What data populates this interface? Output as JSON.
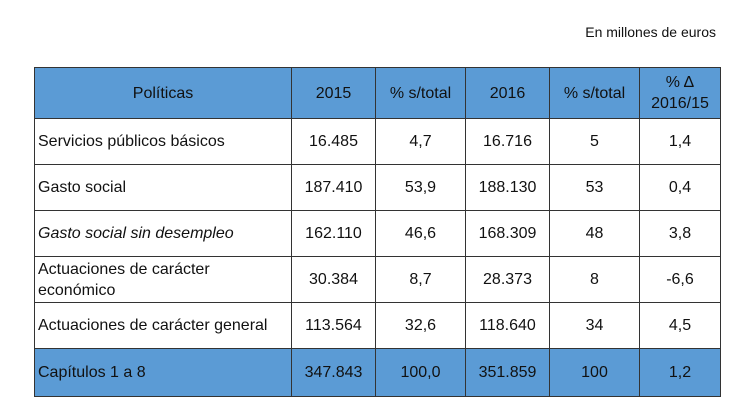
{
  "unit_note": "En millones de euros",
  "colors": {
    "header_bg": "#5b9bd5",
    "total_bg": "#5b9bd5",
    "border": "#333333"
  },
  "table": {
    "headers": [
      "Políticas",
      "2015",
      "% s/total",
      "2016",
      "% s/total",
      "% Δ 2016/15"
    ],
    "rows": [
      {
        "label": "Servicios públicos básicos",
        "italic": false,
        "v2015": "16.485",
        "pct2015": "4,7",
        "v2016": "16.716",
        "pct2016": "5",
        "delta": "1,4"
      },
      {
        "label": "Gasto social",
        "italic": false,
        "v2015": "187.410",
        "pct2015": "53,9",
        "v2016": "188.130",
        "pct2016": "53",
        "delta": "0,4"
      },
      {
        "label": "Gasto social sin desempleo",
        "italic": true,
        "v2015": "162.110",
        "pct2015": "46,6",
        "v2016": "168.309",
        "pct2016": "48",
        "delta": "3,8"
      },
      {
        "label": "Actuaciones de carácter económico",
        "italic": false,
        "v2015": "30.384",
        "pct2015": "8,7",
        "v2016": "28.373",
        "pct2016": "8",
        "delta": "-6,6"
      },
      {
        "label": "Actuaciones de carácter general",
        "italic": false,
        "v2015": "113.564",
        "pct2015": "32,6",
        "v2016": "118.640",
        "pct2016": "34",
        "delta": "4,5"
      }
    ],
    "total": {
      "label": "Capítulos 1 a 8",
      "v2015": "347.843",
      "pct2015": "100,0",
      "v2016": "351.859",
      "pct2016": "100",
      "delta": "1,2"
    }
  }
}
